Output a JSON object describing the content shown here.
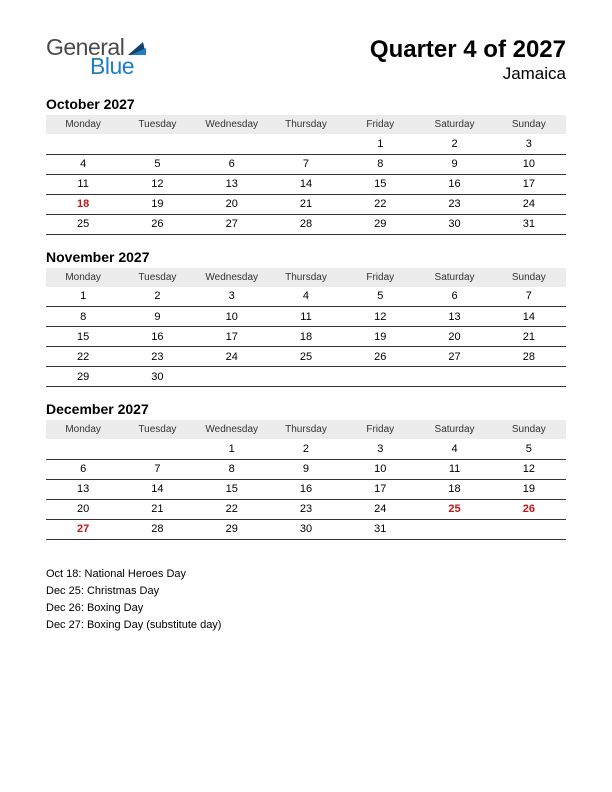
{
  "logo": {
    "word1": "General",
    "word2": "Blue",
    "color_general": "#4a4a4a",
    "color_blue": "#1e7fc2",
    "tri_color": "#13426b"
  },
  "header": {
    "title": "Quarter 4 of 2027",
    "subtitle": "Jamaica"
  },
  "weekdays": [
    "Monday",
    "Tuesday",
    "Wednesday",
    "Thursday",
    "Friday",
    "Saturday",
    "Sunday"
  ],
  "colors": {
    "header_row_bg": "#ececec",
    "row_border": "#333333",
    "holiday_text": "#c01818",
    "background": "#ffffff",
    "text": "#000000"
  },
  "months": [
    {
      "title": "October 2027",
      "rows": [
        [
          "",
          "",
          "",
          "",
          "1",
          "2",
          "3"
        ],
        [
          "4",
          "5",
          "6",
          "7",
          "8",
          "9",
          "10"
        ],
        [
          "11",
          "12",
          "13",
          "14",
          "15",
          "16",
          "17"
        ],
        [
          "18",
          "19",
          "20",
          "21",
          "22",
          "23",
          "24"
        ],
        [
          "25",
          "26",
          "27",
          "28",
          "29",
          "30",
          "31"
        ]
      ],
      "holidays": [
        [
          3,
          0
        ]
      ]
    },
    {
      "title": "November 2027",
      "rows": [
        [
          "1",
          "2",
          "3",
          "4",
          "5",
          "6",
          "7"
        ],
        [
          "8",
          "9",
          "10",
          "11",
          "12",
          "13",
          "14"
        ],
        [
          "15",
          "16",
          "17",
          "18",
          "19",
          "20",
          "21"
        ],
        [
          "22",
          "23",
          "24",
          "25",
          "26",
          "27",
          "28"
        ],
        [
          "29",
          "30",
          "",
          "",
          "",
          "",
          ""
        ]
      ],
      "holidays": []
    },
    {
      "title": "December 2027",
      "rows": [
        [
          "",
          "",
          "1",
          "2",
          "3",
          "4",
          "5"
        ],
        [
          "6",
          "7",
          "8",
          "9",
          "10",
          "11",
          "12"
        ],
        [
          "13",
          "14",
          "15",
          "16",
          "17",
          "18",
          "19"
        ],
        [
          "20",
          "21",
          "22",
          "23",
          "24",
          "25",
          "26"
        ],
        [
          "27",
          "28",
          "29",
          "30",
          "31",
          "",
          ""
        ]
      ],
      "holidays": [
        [
          3,
          5
        ],
        [
          3,
          6
        ],
        [
          4,
          0
        ]
      ]
    }
  ],
  "holiday_notes": [
    "Oct 18: National Heroes Day",
    "Dec 25: Christmas Day",
    "Dec 26: Boxing Day",
    "Dec 27: Boxing Day (substitute day)"
  ]
}
